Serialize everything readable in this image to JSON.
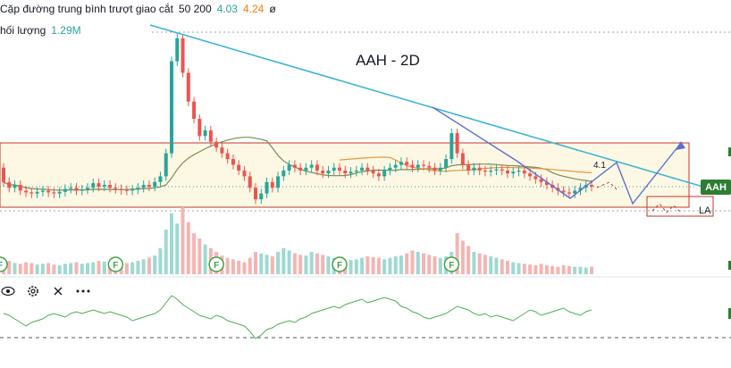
{
  "legend": {
    "ma_label": "Cặp đường trung bình trượt giao cắt",
    "ma_params": "50 200",
    "ma_value_1": "4.03",
    "ma_value_2": "4.24",
    "ma_value_3": "ø",
    "volume_label": "hối lượng",
    "volume_value": "1.29M"
  },
  "toolbar": {
    "eye_icon": "eye-icon",
    "gear_icon": "gear-icon",
    "close_icon": "close-icon",
    "more_icon": "more-icon"
  },
  "annotations": {
    "title": "AAH - 2D",
    "level": "4.1",
    "la_label": "LA",
    "symbol": "AAH",
    "event_marker": "F"
  },
  "colors": {
    "up": "#26a69a",
    "down": "#ef5350",
    "volume_up": "#9ed9d2",
    "volume_down": "#f3b5b2",
    "ma_short": "#7a8a55",
    "ma_long": "#e9963b",
    "trendline": "#3fb3d6",
    "pattern": "#5b6fd1",
    "box": "#c0392b",
    "box_fill": "#fdf8e4",
    "indicator": "#4caf50",
    "badge": "#2e7d32"
  },
  "chart_data": {
    "type": "candlestick",
    "title": "AAH - 2D",
    "series": [
      {
        "name": "price",
        "o": [
          4.35,
          4.1,
          4.0,
          4.05,
          3.95,
          3.92,
          3.9,
          3.93,
          3.95,
          3.92,
          3.9,
          3.93,
          3.98,
          4.0,
          3.95,
          3.97,
          4.0,
          4.08,
          4.02,
          4.05,
          4.0,
          3.98,
          3.96,
          3.95,
          3.97,
          4.0,
          4.05,
          4.02,
          4.1,
          4.2,
          4.6,
          6.2,
          6.6,
          6.0,
          5.5,
          5.2,
          4.9,
          5.0,
          4.8,
          4.7,
          4.6,
          4.5,
          4.4,
          4.3,
          4.2,
          4.0,
          3.8,
          3.9,
          4.1,
          4.0,
          4.2,
          4.3,
          4.4,
          4.35,
          4.3,
          4.35,
          4.4,
          4.3,
          4.25,
          4.3,
          4.35,
          4.3,
          4.25,
          4.28,
          4.3,
          4.35,
          4.3,
          4.25,
          4.2,
          4.3,
          4.35,
          4.4,
          4.45,
          4.4,
          4.35,
          4.4,
          4.38,
          4.35,
          4.3,
          4.35,
          4.5,
          4.95,
          4.6,
          4.4,
          4.3,
          4.35,
          4.3,
          4.28,
          4.3,
          4.32,
          4.3,
          4.25,
          4.28,
          4.3,
          4.25,
          4.2,
          4.15,
          4.1,
          4.05,
          4.0,
          3.95,
          3.92,
          3.9,
          3.95,
          4.0,
          4.05
        ],
        "c": [
          4.1,
          4.0,
          4.05,
          3.95,
          3.92,
          3.9,
          3.93,
          3.95,
          3.92,
          3.9,
          3.93,
          3.98,
          4.0,
          3.95,
          3.97,
          4.0,
          4.08,
          4.02,
          4.05,
          4.0,
          3.98,
          3.96,
          3.95,
          3.97,
          4.0,
          4.05,
          4.02,
          4.1,
          4.2,
          4.6,
          6.2,
          6.6,
          6.0,
          5.5,
          5.2,
          4.9,
          5.0,
          4.8,
          4.7,
          4.6,
          4.5,
          4.4,
          4.3,
          4.2,
          4.0,
          3.8,
          3.9,
          4.1,
          4.0,
          4.2,
          4.3,
          4.4,
          4.35,
          4.3,
          4.35,
          4.4,
          4.3,
          4.25,
          4.3,
          4.35,
          4.3,
          4.25,
          4.28,
          4.3,
          4.35,
          4.3,
          4.25,
          4.2,
          4.3,
          4.35,
          4.4,
          4.45,
          4.4,
          4.35,
          4.4,
          4.38,
          4.35,
          4.3,
          4.35,
          4.5,
          4.95,
          4.6,
          4.4,
          4.3,
          4.35,
          4.3,
          4.28,
          4.3,
          4.32,
          4.3,
          4.25,
          4.28,
          4.3,
          4.25,
          4.2,
          4.15,
          4.1,
          4.05,
          4.0,
          3.95,
          3.92,
          3.9,
          3.95,
          4.0,
          4.05,
          4.02
        ]
      }
    ],
    "volume": [
      22,
      18,
      15,
      14,
      16,
      15,
      13,
      14,
      15,
      13,
      12,
      14,
      15,
      16,
      14,
      15,
      16,
      18,
      17,
      16,
      15,
      14,
      15,
      16,
      18,
      20,
      22,
      25,
      35,
      60,
      82,
      68,
      90,
      70,
      55,
      48,
      40,
      35,
      30,
      25,
      22,
      20,
      18,
      16,
      22,
      30,
      28,
      26,
      24,
      30,
      35,
      32,
      28,
      26,
      25,
      30,
      28,
      26,
      24,
      22,
      20,
      18,
      19,
      20,
      22,
      24,
      23,
      22,
      20,
      22,
      24,
      25,
      28,
      32,
      30,
      28,
      26,
      24,
      22,
      24,
      30,
      55,
      45,
      38,
      30,
      28,
      26,
      24,
      22,
      20,
      18,
      16,
      15,
      14,
      13,
      12,
      14,
      12,
      11,
      10,
      12,
      11,
      10,
      10,
      9,
      10
    ],
    "indicator": [
      0.2,
      0.1,
      -0.1,
      -0.3,
      -0.5,
      -0.3,
      -0.2,
      -0.1,
      0.1,
      0.2,
      0.1,
      0.0,
      0.2,
      0.3,
      0.2,
      0.3,
      0.4,
      0.3,
      0.2,
      0.3,
      0.2,
      0.1,
      0.0,
      -0.2,
      -0.1,
      0.0,
      0.1,
      0.2,
      0.4,
      0.8,
      1.2,
      1.0,
      0.7,
      0.5,
      0.3,
      0.1,
      0.0,
      -0.1,
      0.1,
      0.0,
      -0.2,
      -0.3,
      -0.4,
      -0.5,
      -0.8,
      -1.2,
      -1.0,
      -0.7,
      -0.6,
      -0.4,
      -0.3,
      -0.2,
      -0.3,
      -0.1,
      0.0,
      0.2,
      0.3,
      0.4,
      0.5,
      0.6,
      0.5,
      0.7,
      0.8,
      0.9,
      1.0,
      0.8,
      0.9,
      1.0,
      1.1,
      1.0,
      0.9,
      0.6,
      0.5,
      0.3,
      0.2,
      0.0,
      -0.1,
      0.0,
      0.1,
      0.2,
      0.4,
      0.6,
      0.5,
      0.4,
      0.2,
      0.1,
      0.2,
      0.0,
      0.1,
      0.0,
      -0.1,
      -0.2,
      0.0,
      0.2,
      0.4,
      0.3,
      0.1,
      0.2,
      0.3,
      0.4,
      0.5,
      0.3,
      0.2,
      0.1,
      0.3,
      0.4
    ],
    "event_markers": [
      0,
      20,
      38,
      60,
      80
    ]
  }
}
